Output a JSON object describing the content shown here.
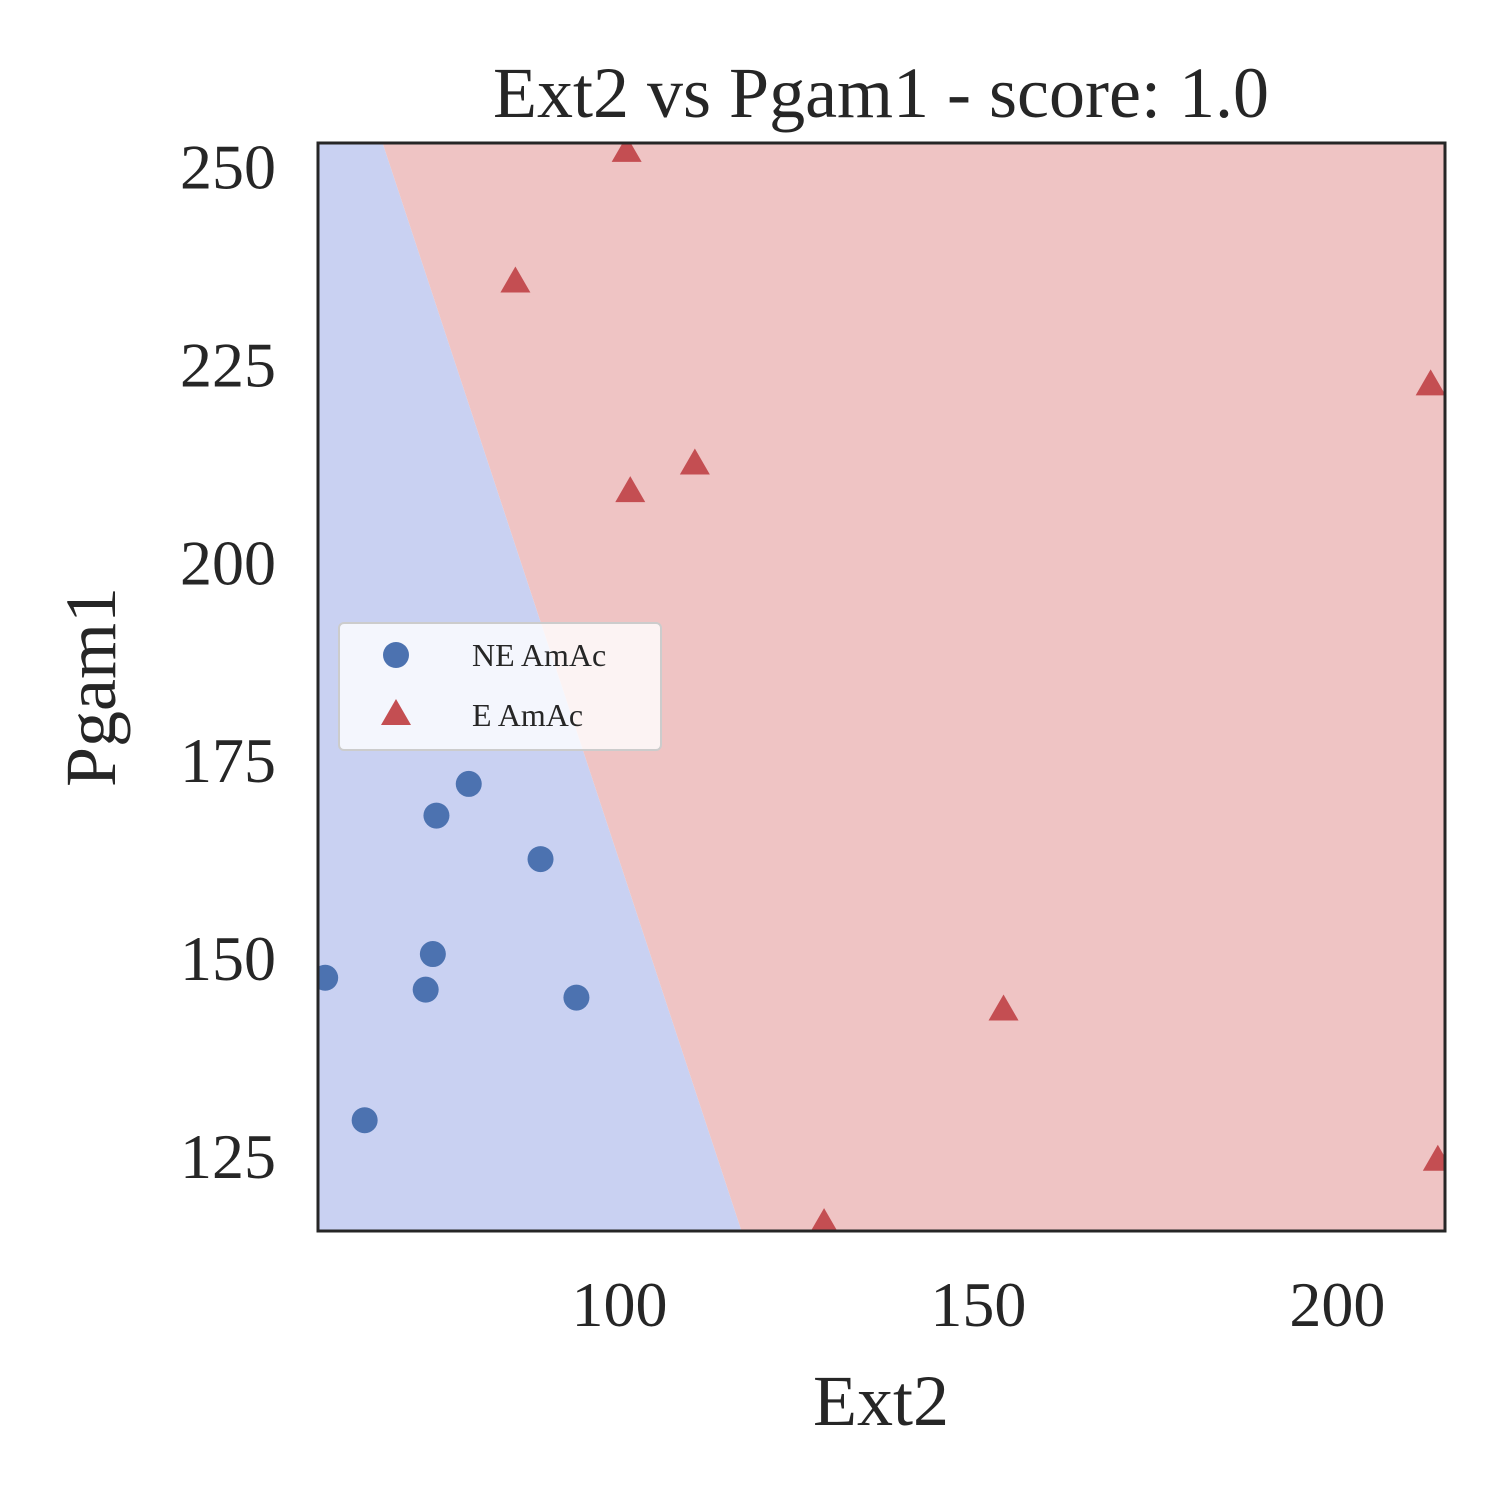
{
  "chart_data": {
    "type": "scatter",
    "title": "Ext2 vs Pgam1 - score: 1.0",
    "xlabel": "Ext2",
    "ylabel": "Pgam1",
    "xlim": [
      58,
      215
    ],
    "ylim": [
      115.5,
      253
    ],
    "xticks": [
      100,
      150,
      200
    ],
    "yticks": [
      125,
      150,
      175,
      200,
      225,
      250
    ],
    "grid": false,
    "legend_position": "center-left",
    "decision_boundary": {
      "points": [
        [
          67,
          253
        ],
        [
          117,
          115.5
        ]
      ],
      "left_color": "#c9d1f2",
      "right_color": "#efc4c4"
    },
    "series": [
      {
        "name": "NE AmAc",
        "marker": "circle",
        "color": "#4c72b0",
        "points": [
          [
            59,
            147.5
          ],
          [
            64.5,
            129.5
          ],
          [
            73,
            146
          ],
          [
            74,
            150.5
          ],
          [
            74.5,
            168
          ],
          [
            79,
            172
          ],
          [
            89,
            162.5
          ],
          [
            94,
            145
          ]
        ]
      },
      {
        "name": "E AmAc",
        "marker": "triangle",
        "color": "#c44e52",
        "points": [
          [
            85.5,
            235.5
          ],
          [
            101,
            252
          ],
          [
            101.5,
            209
          ],
          [
            110.5,
            212.5
          ],
          [
            128.5,
            116.5
          ],
          [
            153.5,
            143.5
          ],
          [
            213,
            222.5
          ],
          [
            214,
            124.5
          ]
        ]
      }
    ]
  }
}
